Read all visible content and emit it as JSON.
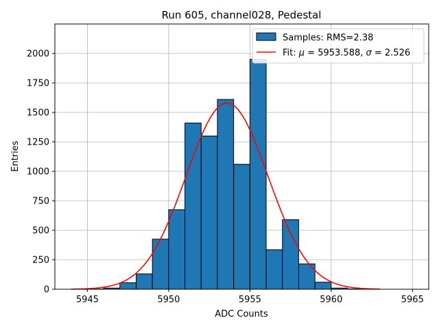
{
  "chart_data": {
    "type": "bar",
    "title": "Run 605, channel028, Pedestal",
    "xlabel": "ADC Counts",
    "ylabel": "Entries",
    "xlim": [
      5943.0,
      5966.0
    ],
    "ylim": [
      0,
      2250
    ],
    "xticks": [
      5945,
      5950,
      5955,
      5960,
      5965
    ],
    "yticks": [
      0,
      250,
      500,
      750,
      1000,
      1250,
      1500,
      1750,
      2000
    ],
    "grid": true,
    "legend_position": "top-right",
    "histogram": {
      "name": "Samples: RMS=2.38",
      "color": "#1f77b4",
      "bin_start": 5945,
      "bin_width": 1,
      "counts": [
        2,
        10,
        55,
        130,
        425,
        675,
        1410,
        1300,
        1610,
        1060,
        1950,
        335,
        590,
        215,
        60,
        10,
        3,
        1
      ]
    },
    "fit": {
      "name": "Fit: μ = 5953.588, σ = 2.526",
      "label_prefix": "Fit: ",
      "mu_symbol": "μ",
      "mu_text": " = 5953.588, ",
      "sigma_symbol": "σ",
      "sigma_text": " = 2.526",
      "color": "#ff0000",
      "mu": 5953.588,
      "sigma": 2.526,
      "amplitude": 1580,
      "x_range": [
        5944,
        5963
      ]
    }
  }
}
